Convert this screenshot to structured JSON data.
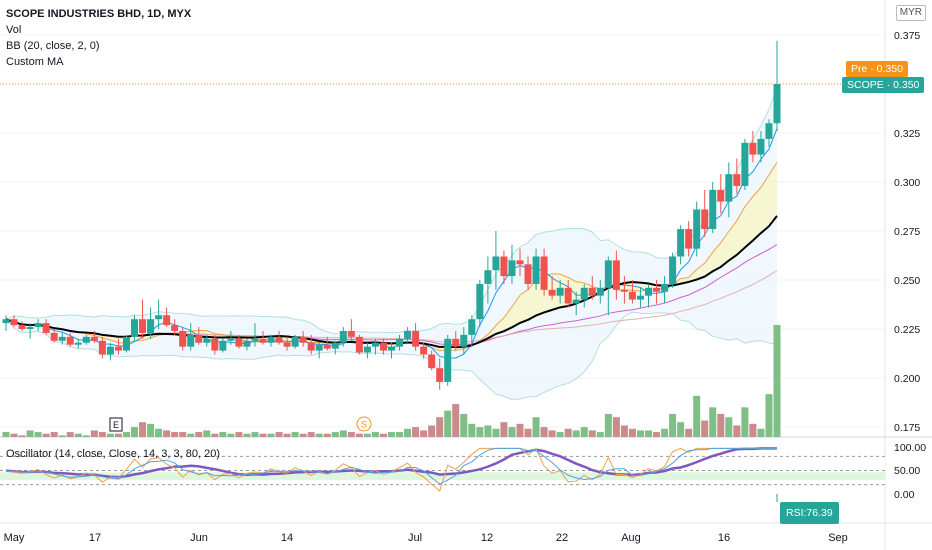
{
  "header": {
    "symbol_line": "SCOPE INDUSTRIES BHD, 1D, MYX",
    "indicators": [
      "Vol",
      "BB (20, close, 2, 0)",
      "Custom MA"
    ],
    "currency": "MYR"
  },
  "price_badges": {
    "pre_label": "Pre · 0.350",
    "pre_color": "#f7931a",
    "scope_label": "SCOPE · 0.350",
    "scope_color": "#26a69a"
  },
  "oscillator": {
    "title": "Oscillator (14, close, Close, 14, 3, 3, 80, 20)",
    "rsi_label": "RSI:76.39",
    "rsi_color": "#26a69a"
  },
  "colors": {
    "up": "#26a69a",
    "down": "#ef5350",
    "up_vol": "#7fbf85",
    "down_vol": "#c98b8b"
  },
  "chart_data": {
    "type": "candlestick",
    "price_axis": {
      "ticks": [
        "0.375",
        "0.350",
        "0.325",
        "0.300",
        "0.275",
        "0.250",
        "0.225",
        "0.200",
        "0.175"
      ]
    },
    "osc_axis": {
      "ticks": [
        "100.00",
        "50.00",
        "0.00"
      ]
    },
    "x_ticks": [
      "May",
      "17",
      "Jun",
      "14",
      "Jul",
      "12",
      "22",
      "Aug",
      "16",
      "Sep"
    ],
    "markers": [
      "E",
      "S"
    ],
    "candles_ohlc": [
      [
        0.228,
        0.232,
        0.224,
        0.23
      ],
      [
        0.23,
        0.232,
        0.226,
        0.227
      ],
      [
        0.227,
        0.229,
        0.224,
        0.225
      ],
      [
        0.225,
        0.228,
        0.22,
        0.226
      ],
      [
        0.226,
        0.23,
        0.224,
        0.228
      ],
      [
        0.228,
        0.23,
        0.222,
        0.223
      ],
      [
        0.223,
        0.225,
        0.218,
        0.219
      ],
      [
        0.219,
        0.223,
        0.217,
        0.221
      ],
      [
        0.221,
        0.223,
        0.216,
        0.217
      ],
      [
        0.217,
        0.22,
        0.215,
        0.218
      ],
      [
        0.218,
        0.222,
        0.217,
        0.221
      ],
      [
        0.221,
        0.224,
        0.218,
        0.219
      ],
      [
        0.219,
        0.221,
        0.21,
        0.212
      ],
      [
        0.212,
        0.218,
        0.209,
        0.216
      ],
      [
        0.216,
        0.22,
        0.212,
        0.214
      ],
      [
        0.214,
        0.222,
        0.213,
        0.221
      ],
      [
        0.221,
        0.232,
        0.219,
        0.23
      ],
      [
        0.23,
        0.24,
        0.22,
        0.223
      ],
      [
        0.223,
        0.236,
        0.22,
        0.23
      ],
      [
        0.23,
        0.24,
        0.225,
        0.232
      ],
      [
        0.232,
        0.236,
        0.226,
        0.227
      ],
      [
        0.227,
        0.23,
        0.222,
        0.224
      ],
      [
        0.224,
        0.226,
        0.214,
        0.216
      ],
      [
        0.216,
        0.228,
        0.214,
        0.222
      ],
      [
        0.222,
        0.226,
        0.217,
        0.218
      ],
      [
        0.218,
        0.222,
        0.216,
        0.22
      ],
      [
        0.22,
        0.222,
        0.212,
        0.214
      ],
      [
        0.214,
        0.22,
        0.213,
        0.219
      ],
      [
        0.219,
        0.224,
        0.217,
        0.22
      ],
      [
        0.22,
        0.222,
        0.215,
        0.216
      ],
      [
        0.216,
        0.22,
        0.214,
        0.219
      ],
      [
        0.219,
        0.228,
        0.216,
        0.22
      ],
      [
        0.22,
        0.224,
        0.217,
        0.218
      ],
      [
        0.218,
        0.222,
        0.216,
        0.221
      ],
      [
        0.221,
        0.224,
        0.217,
        0.218
      ],
      [
        0.218,
        0.221,
        0.214,
        0.216
      ],
      [
        0.216,
        0.222,
        0.215,
        0.221
      ],
      [
        0.221,
        0.224,
        0.216,
        0.218
      ],
      [
        0.218,
        0.222,
        0.212,
        0.214
      ],
      [
        0.214,
        0.218,
        0.21,
        0.217
      ],
      [
        0.217,
        0.221,
        0.214,
        0.215
      ],
      [
        0.215,
        0.219,
        0.212,
        0.218
      ],
      [
        0.218,
        0.226,
        0.216,
        0.224
      ],
      [
        0.224,
        0.23,
        0.22,
        0.221
      ],
      [
        0.221,
        0.222,
        0.212,
        0.213
      ],
      [
        0.213,
        0.218,
        0.21,
        0.216
      ],
      [
        0.216,
        0.22,
        0.212,
        0.218
      ],
      [
        0.218,
        0.22,
        0.212,
        0.214
      ],
      [
        0.214,
        0.218,
        0.21,
        0.216
      ],
      [
        0.216,
        0.222,
        0.214,
        0.22
      ],
      [
        0.22,
        0.226,
        0.218,
        0.224
      ],
      [
        0.224,
        0.228,
        0.214,
        0.216
      ],
      [
        0.216,
        0.218,
        0.21,
        0.212
      ],
      [
        0.212,
        0.214,
        0.204,
        0.205
      ],
      [
        0.205,
        0.21,
        0.194,
        0.198
      ],
      [
        0.198,
        0.222,
        0.196,
        0.22
      ],
      [
        0.22,
        0.224,
        0.214,
        0.216
      ],
      [
        0.216,
        0.226,
        0.212,
        0.222
      ],
      [
        0.222,
        0.232,
        0.216,
        0.23
      ],
      [
        0.23,
        0.25,
        0.226,
        0.248
      ],
      [
        0.248,
        0.262,
        0.238,
        0.255
      ],
      [
        0.255,
        0.275,
        0.245,
        0.262
      ],
      [
        0.262,
        0.265,
        0.248,
        0.252
      ],
      [
        0.252,
        0.268,
        0.248,
        0.26
      ],
      [
        0.26,
        0.266,
        0.252,
        0.258
      ],
      [
        0.258,
        0.262,
        0.245,
        0.248
      ],
      [
        0.248,
        0.266,
        0.245,
        0.262
      ],
      [
        0.262,
        0.266,
        0.242,
        0.245
      ],
      [
        0.245,
        0.252,
        0.24,
        0.242
      ],
      [
        0.242,
        0.25,
        0.238,
        0.246
      ],
      [
        0.246,
        0.25,
        0.236,
        0.238
      ],
      [
        0.238,
        0.244,
        0.232,
        0.24
      ],
      [
        0.24,
        0.248,
        0.236,
        0.246
      ],
      [
        0.246,
        0.252,
        0.24,
        0.242
      ],
      [
        0.242,
        0.25,
        0.238,
        0.246
      ],
      [
        0.246,
        0.262,
        0.232,
        0.26
      ],
      [
        0.26,
        0.265,
        0.24,
        0.245
      ],
      [
        0.245,
        0.252,
        0.238,
        0.244
      ],
      [
        0.244,
        0.25,
        0.238,
        0.24
      ],
      [
        0.24,
        0.246,
        0.236,
        0.242
      ],
      [
        0.242,
        0.248,
        0.236,
        0.246
      ],
      [
        0.246,
        0.25,
        0.238,
        0.244
      ],
      [
        0.244,
        0.252,
        0.238,
        0.248
      ],
      [
        0.248,
        0.264,
        0.246,
        0.262
      ],
      [
        0.262,
        0.278,
        0.258,
        0.276
      ],
      [
        0.276,
        0.28,
        0.262,
        0.266
      ],
      [
        0.266,
        0.29,
        0.262,
        0.286
      ],
      [
        0.286,
        0.296,
        0.272,
        0.276
      ],
      [
        0.276,
        0.3,
        0.274,
        0.296
      ],
      [
        0.296,
        0.304,
        0.284,
        0.29
      ],
      [
        0.29,
        0.31,
        0.282,
        0.304
      ],
      [
        0.304,
        0.312,
        0.294,
        0.298
      ],
      [
        0.298,
        0.322,
        0.296,
        0.32
      ],
      [
        0.32,
        0.326,
        0.31,
        0.314
      ],
      [
        0.314,
        0.326,
        0.31,
        0.322
      ],
      [
        0.322,
        0.332,
        0.318,
        0.33
      ],
      [
        0.33,
        0.372,
        0.326,
        0.35
      ]
    ],
    "volumes": [
      3,
      2,
      1,
      4,
      3,
      2,
      3,
      1,
      3,
      2,
      1,
      4,
      3,
      2,
      2,
      3,
      6,
      9,
      8,
      5,
      4,
      3,
      3,
      2,
      3,
      4,
      2,
      3,
      2,
      3,
      2,
      3,
      2,
      2,
      3,
      2,
      3,
      2,
      3,
      2,
      2,
      3,
      4,
      3,
      2,
      2,
      3,
      2,
      3,
      3,
      5,
      6,
      4,
      7,
      12,
      16,
      20,
      14,
      8,
      6,
      7,
      5,
      9,
      6,
      8,
      5,
      12,
      6,
      4,
      3,
      5,
      4,
      6,
      4,
      3,
      14,
      12,
      7,
      5,
      4,
      4,
      3,
      5,
      14,
      9,
      5,
      25,
      10,
      18,
      14,
      12,
      7,
      18,
      8,
      5,
      26,
      68
    ]
  }
}
